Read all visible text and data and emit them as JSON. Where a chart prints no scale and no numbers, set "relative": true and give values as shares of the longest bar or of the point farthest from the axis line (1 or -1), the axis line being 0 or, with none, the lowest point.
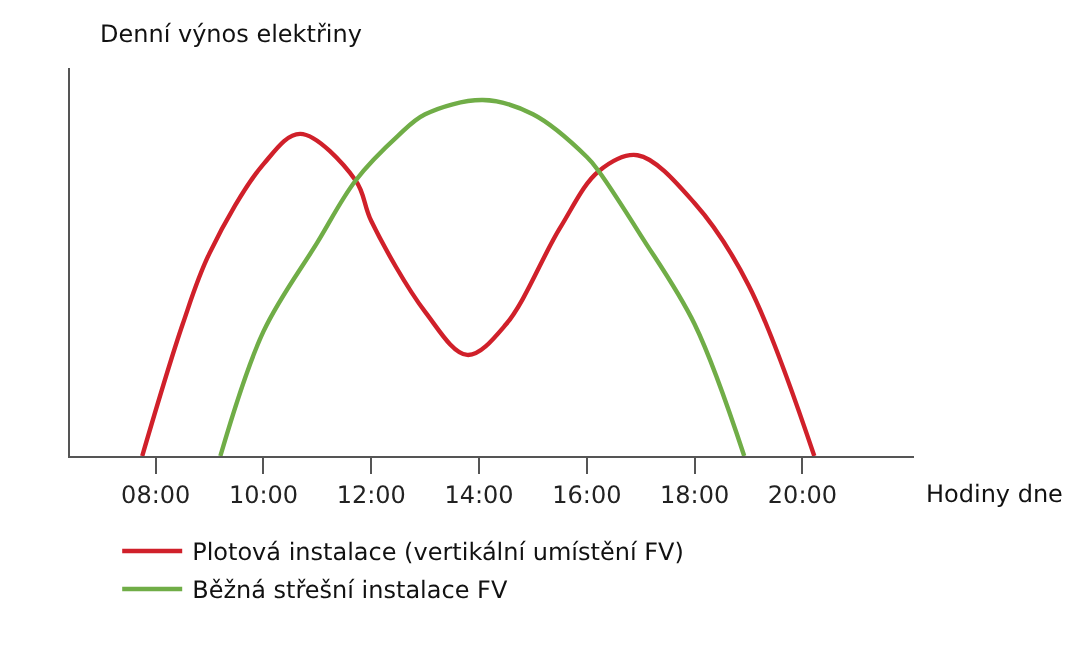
{
  "chart_data": {
    "type": "line",
    "relative": true,
    "ylabel": "Denní výnos elektřiny",
    "xlabel": "Hodiny dne",
    "xlim": [
      6.41,
      22.07
    ],
    "xticks": [
      {
        "value": 8,
        "label": "08:00"
      },
      {
        "value": 10,
        "label": "10:00"
      },
      {
        "value": 12,
        "label": "12:00"
      },
      {
        "value": 14,
        "label": "14:00"
      },
      {
        "value": 16,
        "label": "16:00"
      },
      {
        "value": 18,
        "label": "18:00"
      },
      {
        "value": 20,
        "label": "20:00"
      }
    ],
    "legend": "bottom",
    "marker": "none",
    "line_style": "solid",
    "series": [
      {
        "name": "Plotová instalace (vertikální umístění FV)",
        "color": "#d0202a",
        "x": [
          7.75,
          8.5,
          9,
          10,
          10.68,
          11.71,
          12,
          13,
          13.78,
          14.5,
          15.5,
          16.22,
          16.94,
          18,
          19,
          20.22
        ],
        "values": [
          0,
          0.37,
          0.57,
          0.82,
          0.905,
          0.774,
          0.66,
          0.405,
          0.284,
          0.37,
          0.64,
          0.8,
          0.845,
          0.71,
          0.48,
          0
        ]
      },
      {
        "name": "Běžná střešní instalace FV",
        "color": "#70ad47",
        "x": [
          9.2,
          10,
          11,
          11.71,
          12.5,
          13,
          14.07,
          15,
          16,
          16.22,
          17,
          18,
          18.92
        ],
        "values": [
          0,
          0.35,
          0.6,
          0.774,
          0.9,
          0.96,
          1,
          0.96,
          0.84,
          0.8,
          0.62,
          0.37,
          0
        ]
      }
    ]
  }
}
